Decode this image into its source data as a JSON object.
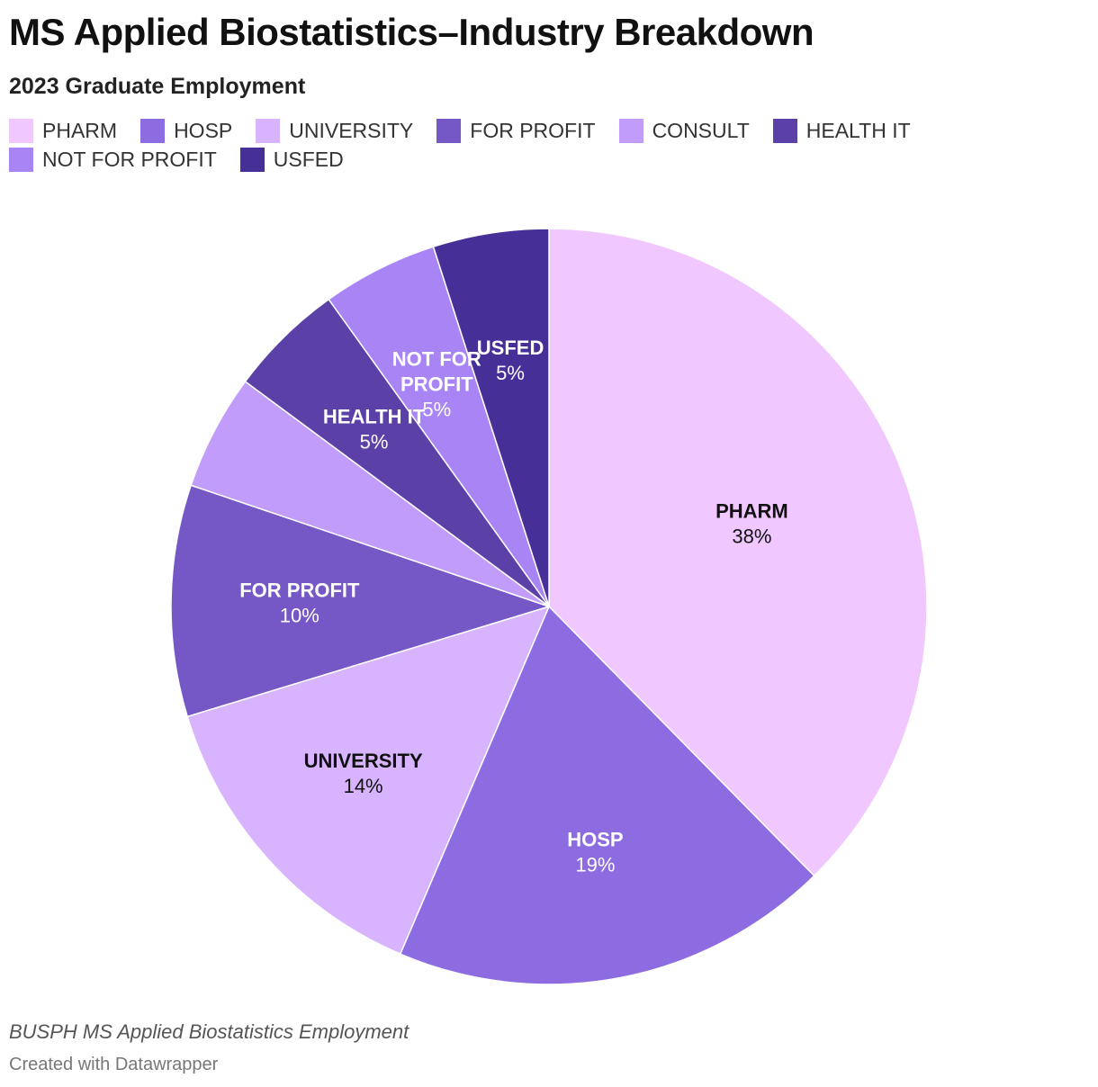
{
  "header": {
    "title": "MS Applied Biostatistics–Industry Breakdown",
    "subtitle": "2023 Graduate Employment"
  },
  "footer": {
    "notes": "BUSPH MS Applied Biostatistics Employment",
    "credit": "Created with Datawrapper"
  },
  "chart_data": {
    "type": "pie",
    "title": "MS Applied Biostatistics–Industry Breakdown",
    "subtitle": "2023 Graduate Employment",
    "legend_position": "top",
    "start": "12 o'clock",
    "direction": "clockwise",
    "slices": [
      {
        "label": "PHARM",
        "display_label": [
          "PHARM"
        ],
        "value": 38,
        "value_label": "38%",
        "color": "#f0c8ff",
        "text_color": "#111111"
      },
      {
        "label": "HOSP",
        "display_label": [
          "HOSP"
        ],
        "value": 19,
        "value_label": "19%",
        "color": "#8c6ce0",
        "text_color": "#ffffff"
      },
      {
        "label": "UNIVERSITY",
        "display_label": [
          "UNIVERSITY"
        ],
        "value": 14,
        "value_label": "14%",
        "color": "#d8b4fe",
        "text_color": "#111111"
      },
      {
        "label": "FOR PROFIT",
        "display_label": [
          "FOR PROFIT"
        ],
        "value": 10,
        "value_label": "10%",
        "color": "#7557c6",
        "text_color": "#ffffff"
      },
      {
        "label": "CONSULT",
        "display_label": [],
        "value": 5,
        "value_label": "",
        "color": "#c29cfb",
        "text_color": "#111111"
      },
      {
        "label": "HEALTH IT",
        "display_label": [
          "HEALTH IT"
        ],
        "value": 5,
        "value_label": "5%",
        "color": "#5b40a8",
        "text_color": "#ffffff"
      },
      {
        "label": "NOT FOR PROFIT",
        "display_label": [
          "NOT FOR",
          "PROFIT"
        ],
        "value": 5,
        "value_label": "5%",
        "color": "#a884f5",
        "text_color": "#ffffff"
      },
      {
        "label": "USFED",
        "display_label": [
          "USFED"
        ],
        "value": 5,
        "value_label": "5%",
        "color": "#472f98",
        "text_color": "#ffffff"
      }
    ]
  }
}
